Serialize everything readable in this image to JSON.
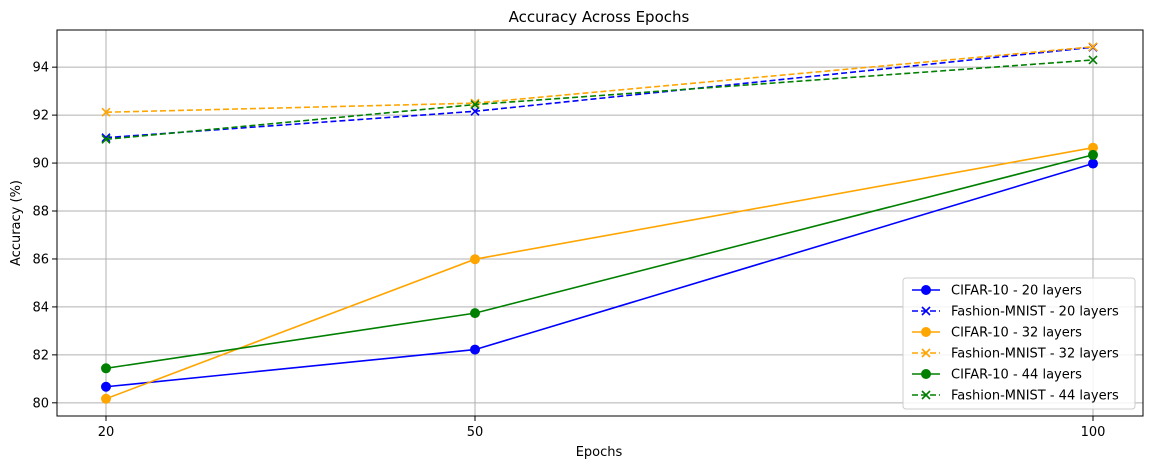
{
  "chart_data": {
    "type": "line",
    "title": "Accuracy Across Epochs",
    "xlabel": "Epochs",
    "ylabel": "Accuracy (%)",
    "x": [
      20,
      50,
      100
    ],
    "x_tick_labels": [
      "20",
      "50",
      "100"
    ],
    "x_scale": "categorical",
    "ylim": [
      79.45,
      95.55
    ],
    "y_ticks": [
      80,
      82,
      84,
      86,
      88,
      90,
      92,
      94
    ],
    "y_tick_labels": [
      "80",
      "82",
      "84",
      "86",
      "88",
      "90",
      "92",
      "94"
    ],
    "grid": true,
    "legend_position": "lower-right",
    "series": [
      {
        "name": "CIFAR-10 - 20 layers",
        "values": [
          80.67,
          82.22,
          89.98
        ],
        "color": "#0000ff",
        "style": "solid",
        "marker": "circle"
      },
      {
        "name": "Fashion-MNIST - 20 layers",
        "values": [
          91.06,
          92.16,
          94.83
        ],
        "color": "#0000ff",
        "style": "dashed",
        "marker": "x"
      },
      {
        "name": "CIFAR-10 - 32 layers",
        "values": [
          80.17,
          85.99,
          90.64
        ],
        "color": "#ffa500",
        "style": "solid",
        "marker": "circle"
      },
      {
        "name": "Fashion-MNIST - 32 layers",
        "values": [
          92.12,
          92.5,
          94.85
        ],
        "color": "#ffa500",
        "style": "dashed",
        "marker": "x"
      },
      {
        "name": "CIFAR-10 - 44 layers",
        "values": [
          81.44,
          83.74,
          90.34
        ],
        "color": "#008000",
        "style": "solid",
        "marker": "circle"
      },
      {
        "name": "Fashion-MNIST - 44 layers",
        "values": [
          90.99,
          92.44,
          94.3
        ],
        "color": "#008000",
        "style": "dashed",
        "marker": "x"
      }
    ]
  }
}
